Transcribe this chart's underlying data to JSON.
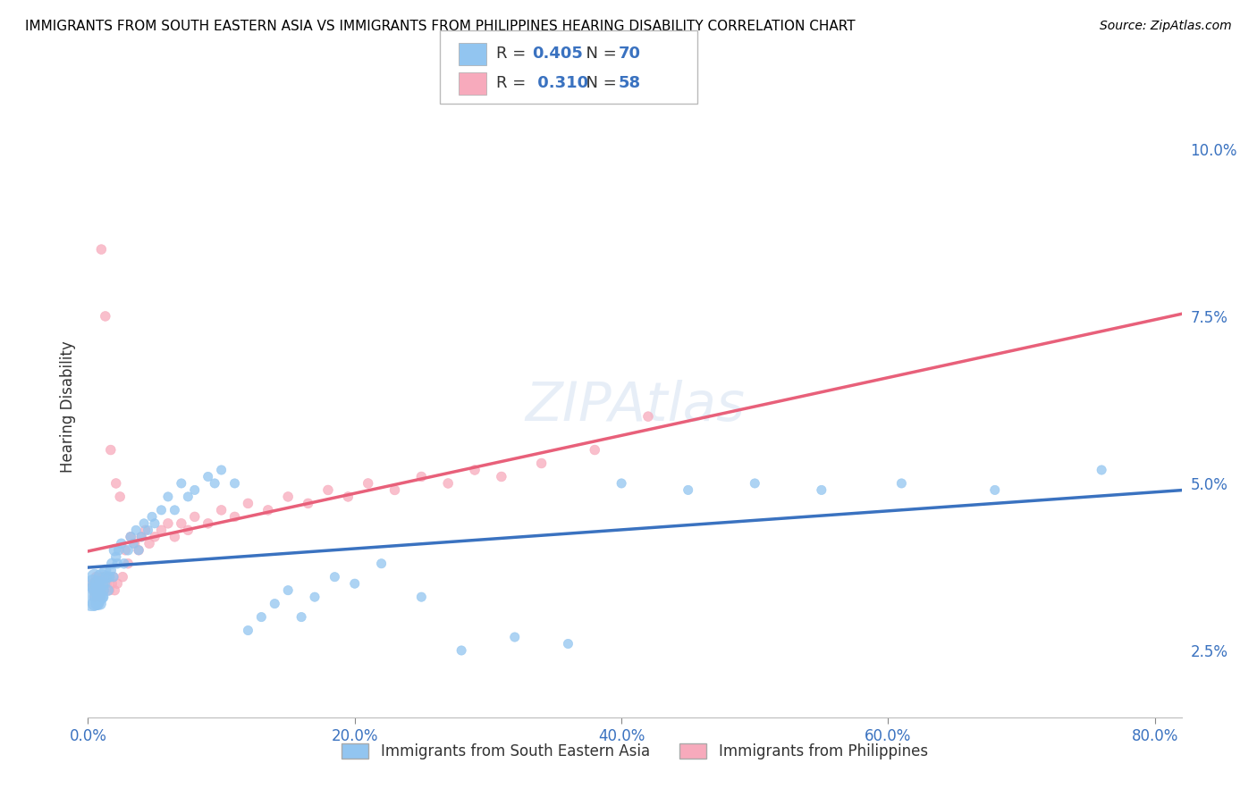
{
  "title": "IMMIGRANTS FROM SOUTH EASTERN ASIA VS IMMIGRANTS FROM PHILIPPINES HEARING DISABILITY CORRELATION CHART",
  "source": "Source: ZipAtlas.com",
  "ylabel": "Hearing Disability",
  "xlabel_ticks": [
    "0.0%",
    "20.0%",
    "40.0%",
    "60.0%",
    "80.0%"
  ],
  "xlabel_vals": [
    0.0,
    0.2,
    0.4,
    0.6,
    0.8
  ],
  "ytick_labels": [
    "2.5%",
    "5.0%",
    "7.5%",
    "10.0%"
  ],
  "ytick_vals": [
    0.025,
    0.05,
    0.075,
    0.1
  ],
  "xlim": [
    0.0,
    0.82
  ],
  "ylim": [
    0.015,
    0.108
  ],
  "r_blue": 0.405,
  "n_blue": 70,
  "r_pink": 0.31,
  "n_pink": 58,
  "blue_color": "#92C5F0",
  "pink_color": "#F7AABC",
  "blue_line_color": "#3A72C0",
  "pink_line_color": "#E8607A",
  "watermark": "ZIPAtlas",
  "legend_label_blue": "Immigrants from South Eastern Asia",
  "legend_label_pink": "Immigrants from Philippines",
  "blue_scatter_x": [
    0.003,
    0.004,
    0.005,
    0.005,
    0.006,
    0.006,
    0.007,
    0.007,
    0.008,
    0.008,
    0.009,
    0.01,
    0.01,
    0.01,
    0.011,
    0.011,
    0.012,
    0.013,
    0.014,
    0.015,
    0.016,
    0.017,
    0.018,
    0.019,
    0.02,
    0.021,
    0.022,
    0.023,
    0.025,
    0.027,
    0.03,
    0.032,
    0.034,
    0.036,
    0.038,
    0.04,
    0.042,
    0.045,
    0.048,
    0.05,
    0.055,
    0.06,
    0.065,
    0.07,
    0.075,
    0.08,
    0.09,
    0.095,
    0.1,
    0.11,
    0.12,
    0.13,
    0.14,
    0.15,
    0.16,
    0.17,
    0.185,
    0.2,
    0.22,
    0.25,
    0.28,
    0.32,
    0.36,
    0.4,
    0.45,
    0.5,
    0.55,
    0.61,
    0.68,
    0.76
  ],
  "blue_scatter_y": [
    0.033,
    0.035,
    0.032,
    0.036,
    0.034,
    0.033,
    0.035,
    0.032,
    0.034,
    0.033,
    0.032,
    0.036,
    0.033,
    0.035,
    0.034,
    0.033,
    0.035,
    0.037,
    0.036,
    0.034,
    0.036,
    0.037,
    0.038,
    0.036,
    0.04,
    0.039,
    0.038,
    0.04,
    0.041,
    0.038,
    0.04,
    0.042,
    0.041,
    0.043,
    0.04,
    0.042,
    0.044,
    0.043,
    0.045,
    0.044,
    0.046,
    0.048,
    0.046,
    0.05,
    0.048,
    0.049,
    0.051,
    0.05,
    0.052,
    0.05,
    0.028,
    0.03,
    0.032,
    0.034,
    0.03,
    0.033,
    0.036,
    0.035,
    0.038,
    0.033,
    0.025,
    0.027,
    0.026,
    0.05,
    0.049,
    0.05,
    0.049,
    0.05,
    0.049,
    0.052
  ],
  "blue_scatter_s": [
    500,
    200,
    120,
    150,
    130,
    110,
    120,
    100,
    110,
    100,
    90,
    150,
    100,
    120,
    90,
    80,
    90,
    80,
    80,
    70,
    70,
    70,
    70,
    60,
    80,
    60,
    60,
    60,
    60,
    60,
    60,
    60,
    55,
    55,
    55,
    55,
    55,
    55,
    55,
    55,
    55,
    55,
    55,
    55,
    55,
    55,
    55,
    55,
    55,
    55,
    55,
    55,
    55,
    55,
    55,
    55,
    55,
    55,
    55,
    55,
    55,
    55,
    55,
    55,
    55,
    55,
    55,
    55,
    55,
    55
  ],
  "pink_scatter_x": [
    0.003,
    0.004,
    0.005,
    0.005,
    0.006,
    0.007,
    0.007,
    0.008,
    0.009,
    0.01,
    0.01,
    0.011,
    0.012,
    0.013,
    0.014,
    0.015,
    0.016,
    0.017,
    0.018,
    0.019,
    0.02,
    0.021,
    0.022,
    0.024,
    0.026,
    0.028,
    0.03,
    0.032,
    0.035,
    0.038,
    0.04,
    0.043,
    0.046,
    0.05,
    0.055,
    0.06,
    0.065,
    0.07,
    0.075,
    0.08,
    0.09,
    0.1,
    0.11,
    0.12,
    0.135,
    0.15,
    0.165,
    0.18,
    0.195,
    0.21,
    0.23,
    0.25,
    0.27,
    0.29,
    0.31,
    0.34,
    0.38,
    0.42
  ],
  "pink_scatter_y": [
    0.035,
    0.034,
    0.033,
    0.035,
    0.036,
    0.034,
    0.035,
    0.034,
    0.033,
    0.034,
    0.085,
    0.036,
    0.034,
    0.075,
    0.035,
    0.036,
    0.034,
    0.055,
    0.035,
    0.036,
    0.034,
    0.05,
    0.035,
    0.048,
    0.036,
    0.04,
    0.038,
    0.042,
    0.041,
    0.04,
    0.042,
    0.043,
    0.041,
    0.042,
    0.043,
    0.044,
    0.042,
    0.044,
    0.043,
    0.045,
    0.044,
    0.046,
    0.045,
    0.047,
    0.046,
    0.048,
    0.047,
    0.049,
    0.048,
    0.05,
    0.049,
    0.051,
    0.05,
    0.052,
    0.051,
    0.053,
    0.055,
    0.06
  ],
  "pink_scatter_s": [
    60,
    60,
    60,
    60,
    60,
    60,
    60,
    60,
    60,
    60,
    60,
    60,
    60,
    60,
    60,
    60,
    60,
    60,
    60,
    60,
    60,
    60,
    60,
    60,
    60,
    60,
    60,
    60,
    60,
    60,
    60,
    60,
    60,
    60,
    60,
    60,
    60,
    60,
    60,
    60,
    60,
    60,
    60,
    60,
    60,
    60,
    60,
    60,
    60,
    60,
    60,
    60,
    60,
    60,
    60,
    60,
    60,
    60
  ]
}
